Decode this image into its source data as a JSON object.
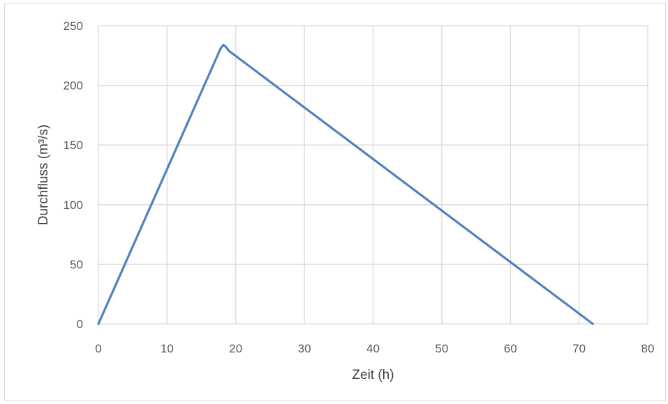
{
  "chart_data": {
    "type": "line",
    "title": "",
    "xlabel": "Zeit (h)",
    "ylabel": "Durchfluss (m³/s)",
    "xlim": [
      0,
      80
    ],
    "ylim": [
      0,
      250
    ],
    "xticks": [
      0,
      10,
      20,
      30,
      40,
      50,
      60,
      70,
      80
    ],
    "yticks": [
      0,
      50,
      100,
      150,
      200,
      250
    ],
    "grid": true,
    "legend": "none",
    "series": [
      {
        "color": "#4f81bd",
        "points": [
          {
            "x": 0,
            "y": 0
          },
          {
            "x": 17.8,
            "y": 231
          },
          {
            "x": 18.2,
            "y": 234
          },
          {
            "x": 18.6,
            "y": 232
          },
          {
            "x": 19,
            "y": 229
          },
          {
            "x": 72,
            "y": 0
          }
        ]
      }
    ]
  }
}
